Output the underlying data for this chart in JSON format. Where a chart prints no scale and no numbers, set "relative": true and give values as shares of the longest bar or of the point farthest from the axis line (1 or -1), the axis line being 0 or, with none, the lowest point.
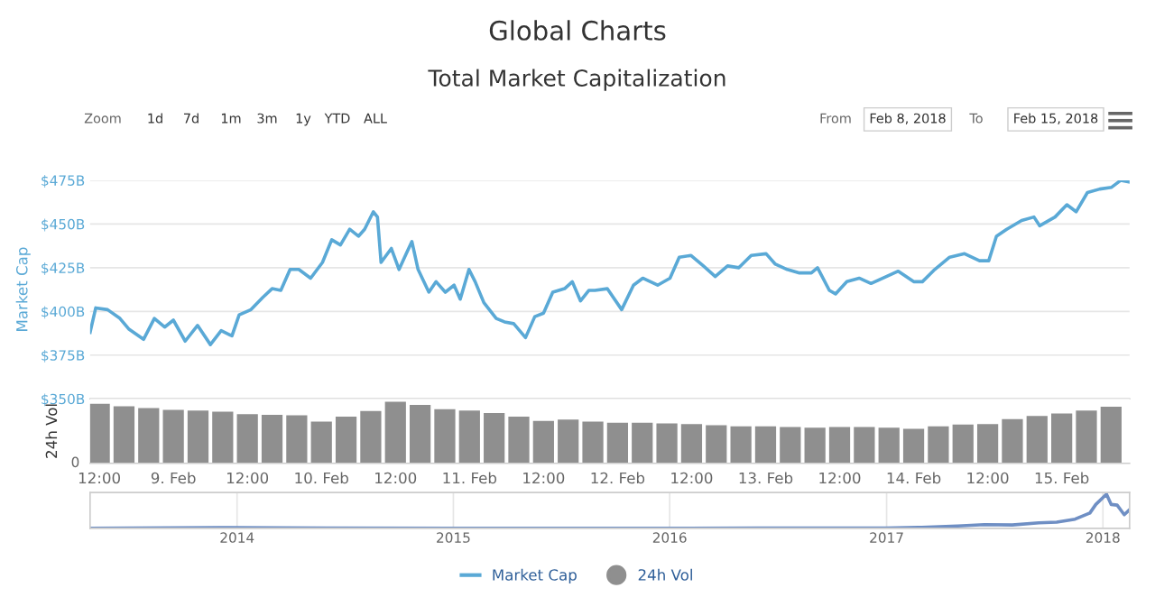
{
  "chart_data": [
    {
      "type": "line",
      "title": "Global Charts",
      "subtitle": "Total Market Capitalization",
      "ylabel": "Market Cap",
      "annotations": [
        "Zoom",
        "1d",
        "7d",
        "1m",
        "3m",
        "1y",
        "YTD",
        "ALL",
        "From",
        "Feb 8, 2018",
        "To",
        "Feb 15, 2018"
      ],
      "x": [
        "2018-02-08T10:30",
        "2018-02-08T11:25",
        "2018-02-08T13:20",
        "2018-02-08T15:20",
        "2018-02-08T16:45",
        "2018-02-08T19:10",
        "2018-02-08T20:55",
        "2018-02-08T22:35",
        "2018-02-09T00:00",
        "2018-02-09T01:55",
        "2018-02-09T03:55",
        "2018-02-09T06:00",
        "2018-02-09T07:45",
        "2018-02-09T09:30",
        "2018-02-09T10:40",
        "2018-02-09T12:35",
        "2018-02-09T14:30",
        "2018-02-09T16:00",
        "2018-02-09T17:25",
        "2018-02-09T18:55",
        "2018-02-09T20:20",
        "2018-02-09T22:15",
        "2018-02-10T00:10",
        "2018-02-10T01:40",
        "2018-02-10T03:05",
        "2018-02-10T04:35",
        "2018-02-10T06:00",
        "2018-02-10T07:00",
        "2018-02-10T08:25",
        "2018-02-10T09:05",
        "2018-02-10T09:40",
        "2018-02-10T11:20",
        "2018-02-10T12:35",
        "2018-02-10T13:45",
        "2018-02-10T14:40",
        "2018-02-10T15:40",
        "2018-02-10T17:25",
        "2018-02-10T18:35",
        "2018-02-10T20:05",
        "2018-02-10T21:30",
        "2018-02-10T22:30",
        "2018-02-10T23:55",
        "2018-02-11T00:55",
        "2018-02-11T02:20",
        "2018-02-11T04:20",
        "2018-02-11T05:40",
        "2018-02-11T07:10",
        "2018-02-11T09:05",
        "2018-02-11T10:35",
        "2018-02-11T12:00",
        "2018-02-11T13:30",
        "2018-02-11T15:25",
        "2018-02-11T16:40",
        "2018-02-11T18:00",
        "2018-02-11T19:20",
        "2018-02-11T20:20",
        "2018-02-11T22:20",
        "2018-02-12T00:40",
        "2018-02-12T02:35",
        "2018-02-12T04:05",
        "2018-02-12T06:30",
        "2018-02-12T08:30",
        "2018-02-12T10:00",
        "2018-02-12T11:55",
        "2018-02-12T13:55",
        "2018-02-12T15:50",
        "2018-02-12T17:50",
        "2018-02-12T19:40",
        "2018-02-12T21:40",
        "2018-02-13T00:05",
        "2018-02-13T01:35",
        "2018-02-13T03:30",
        "2018-02-13T05:30",
        "2018-02-13T07:25",
        "2018-02-13T08:25",
        "2018-02-13T10:20",
        "2018-02-13T11:20",
        "2018-02-13T13:10",
        "2018-02-13T15:10",
        "2018-02-13T17:05",
        "2018-02-13T19:35",
        "2018-02-13T21:30",
        "2018-02-14T00:00",
        "2018-02-14T01:25",
        "2018-02-14T03:25",
        "2018-02-14T05:50",
        "2018-02-14T08:15",
        "2018-02-14T10:40",
        "2018-02-14T12:10",
        "2018-02-14T13:25",
        "2018-02-14T15:05",
        "2018-02-14T17:30",
        "2018-02-14T19:30",
        "2018-02-14T20:25",
        "2018-02-14T22:55",
        "2018-02-15T00:50",
        "2018-02-15T02:20",
        "2018-02-15T04:10",
        "2018-02-15T06:10",
        "2018-02-15T08:05",
        "2018-02-15T09:35",
        "2018-02-15T10:55"
      ],
      "series": [
        {
          "name": "Market Cap",
          "color": "#5aa9d6",
          "values": [
            388,
            402,
            401,
            396,
            390,
            384,
            396,
            391,
            395,
            383,
            392,
            381,
            389,
            386,
            398,
            401,
            408,
            413,
            412,
            424,
            424,
            419,
            428,
            441,
            438,
            447,
            443,
            447,
            457,
            454,
            428,
            436,
            424,
            433,
            440,
            424,
            411,
            417,
            411,
            415,
            407,
            424,
            417,
            405,
            396,
            394,
            393,
            385,
            397,
            399,
            411,
            413,
            417,
            406,
            412,
            412,
            413,
            401,
            415,
            419,
            415,
            419,
            431,
            432,
            426,
            420,
            426,
            425,
            432,
            433,
            427,
            424,
            422,
            422,
            425,
            412,
            410,
            417,
            419,
            416,
            420,
            423,
            417,
            417,
            424,
            431,
            433,
            429,
            429,
            443,
            447,
            452,
            454,
            449,
            454,
            461,
            457,
            468,
            470,
            471,
            475,
            474
          ]
        }
      ],
      "xlim": [
        "2018-02-08T10:30",
        "2018-02-15T11:00"
      ],
      "ylim": [
        350,
        475
      ],
      "yticks": [
        {
          "value": 350,
          "label": "$350B"
        },
        {
          "value": 375,
          "label": "$375B"
        },
        {
          "value": 400,
          "label": "$400B"
        },
        {
          "value": 425,
          "label": "$425B"
        },
        {
          "value": 450,
          "label": "$450B"
        },
        {
          "value": 475,
          "label": "$475B"
        }
      ],
      "tick_labels": "y",
      "grid": "y",
      "legend": "bottom"
    },
    {
      "type": "bar",
      "ylabel": "24h Vol",
      "relative": true,
      "annotations": [
        "0"
      ],
      "x": [
        "2018-02-08T12:00",
        "2018-02-08T16:00",
        "2018-02-08T20:00",
        "2018-02-09T00:00",
        "2018-02-09T04:00",
        "2018-02-09T08:00",
        "2018-02-09T12:00",
        "2018-02-09T16:00",
        "2018-02-09T20:00",
        "2018-02-10T00:00",
        "2018-02-10T04:00",
        "2018-02-10T08:00",
        "2018-02-10T12:00",
        "2018-02-10T16:00",
        "2018-02-10T20:00",
        "2018-02-11T00:00",
        "2018-02-11T04:00",
        "2018-02-11T08:00",
        "2018-02-11T12:00",
        "2018-02-11T16:00",
        "2018-02-11T20:00",
        "2018-02-12T00:00",
        "2018-02-12T04:00",
        "2018-02-12T08:00",
        "2018-02-12T12:00",
        "2018-02-12T16:00",
        "2018-02-12T20:00",
        "2018-02-13T00:00",
        "2018-02-13T04:00",
        "2018-02-13T08:00",
        "2018-02-13T12:00",
        "2018-02-13T16:00",
        "2018-02-13T20:00",
        "2018-02-14T00:00",
        "2018-02-14T04:00",
        "2018-02-14T08:00",
        "2018-02-14T12:00",
        "2018-02-14T16:00",
        "2018-02-14T20:00",
        "2018-02-15T00:00",
        "2018-02-15T04:00",
        "2018-02-15T08:00"
      ],
      "series": [
        {
          "name": "24h Vol",
          "color": "#8f8f8f",
          "values": [
            0.97,
            0.93,
            0.9,
            0.87,
            0.86,
            0.84,
            0.8,
            0.79,
            0.78,
            0.68,
            0.76,
            0.85,
            1.0,
            0.95,
            0.88,
            0.86,
            0.82,
            0.76,
            0.69,
            0.71,
            0.68,
            0.66,
            0.66,
            0.65,
            0.64,
            0.62,
            0.6,
            0.6,
            0.59,
            0.58,
            0.59,
            0.59,
            0.58,
            0.56,
            0.6,
            0.63,
            0.64,
            0.72,
            0.77,
            0.81,
            0.86,
            0.92
          ]
        }
      ],
      "xlim": [
        "2018-02-08T10:30",
        "2018-02-15T11:00"
      ],
      "xticks": [
        {
          "value": "2018-02-08T12:00",
          "label": "12:00"
        },
        {
          "value": "2018-02-09T00:00",
          "label": "9. Feb"
        },
        {
          "value": "2018-02-09T12:00",
          "label": "12:00"
        },
        {
          "value": "2018-02-10T00:00",
          "label": "10. Feb"
        },
        {
          "value": "2018-02-10T12:00",
          "label": "12:00"
        },
        {
          "value": "2018-02-11T00:00",
          "label": "11. Feb"
        },
        {
          "value": "2018-02-11T12:00",
          "label": "12:00"
        },
        {
          "value": "2018-02-12T00:00",
          "label": "12. Feb"
        },
        {
          "value": "2018-02-12T12:00",
          "label": "12:00"
        },
        {
          "value": "2018-02-13T00:00",
          "label": "13. Feb"
        },
        {
          "value": "2018-02-13T12:00",
          "label": "12:00"
        },
        {
          "value": "2018-02-14T00:00",
          "label": "14. Feb"
        },
        {
          "value": "2018-02-14T12:00",
          "label": "12:00"
        },
        {
          "value": "2018-02-15T00:00",
          "label": "15. Feb"
        }
      ],
      "tick_labels": "x"
    },
    {
      "type": "line",
      "relative": true,
      "x": [
        "2013-04-28",
        "2013-12-01",
        "2014-06-01",
        "2015-01-01",
        "2015-06-01",
        "2016-01-01",
        "2016-06-01",
        "2017-01-01",
        "2017-03-01",
        "2017-05-01",
        "2017-06-15",
        "2017-08-01",
        "2017-09-15",
        "2017-10-15",
        "2017-11-15",
        "2017-12-10",
        "2017-12-20",
        "2018-01-07",
        "2018-01-15",
        "2018-01-25",
        "2018-02-06",
        "2018-02-15"
      ],
      "series": [
        {
          "color": "#6f8fc4",
          "values": [
            0.0,
            0.02,
            0.01,
            0.0,
            0.0,
            0.0,
            0.01,
            0.01,
            0.03,
            0.07,
            0.11,
            0.1,
            0.16,
            0.18,
            0.27,
            0.45,
            0.7,
            1.0,
            0.7,
            0.68,
            0.4,
            0.55
          ]
        }
      ],
      "xlim": [
        "2013-04-28",
        "2018-02-15"
      ],
      "xticks": [
        {
          "value": "2014-01-01",
          "label": "2014"
        },
        {
          "value": "2015-01-01",
          "label": "2015"
        },
        {
          "value": "2016-01-01",
          "label": "2016"
        },
        {
          "value": "2017-01-01",
          "label": "2017"
        },
        {
          "value": "2018-01-01",
          "label": "2018"
        }
      ],
      "tick_labels": "x",
      "grid": "x"
    }
  ]
}
